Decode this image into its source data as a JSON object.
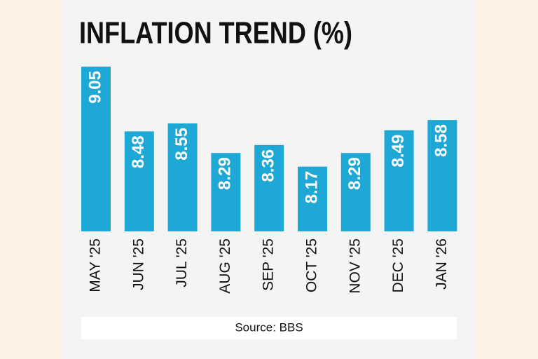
{
  "chart_data": {
    "type": "bar",
    "title": "INFLATION TREND (%)",
    "categories": [
      "MAY '25",
      "JUN '25",
      "JUL '25",
      "AUG '25",
      "SEP '25",
      "OCT '25",
      "NOV '25",
      "DEC '25",
      "JAN '26"
    ],
    "values": [
      9.05,
      8.48,
      8.55,
      8.29,
      8.36,
      8.17,
      8.29,
      8.49,
      8.58
    ],
    "color": "#1ea8d5",
    "ylim": [
      7.6,
      9.05
    ],
    "source": "Source: BBS"
  }
}
